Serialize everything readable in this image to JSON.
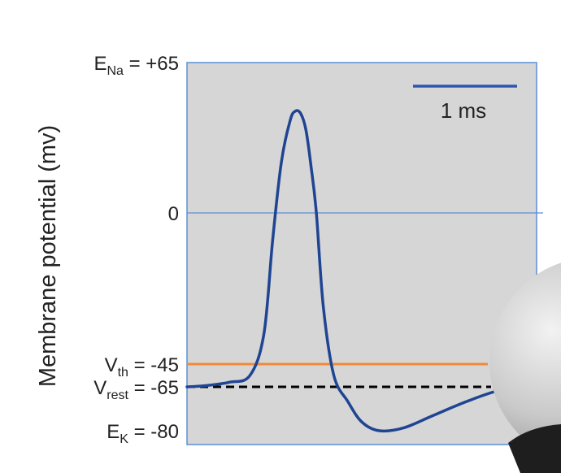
{
  "chart_data": {
    "type": "line",
    "title": "",
    "xlabel": "",
    "ylabel": "Membrane potential (mv)",
    "ylim": [
      -80,
      65
    ],
    "xlim": [
      0,
      1
    ],
    "grid": false,
    "tick_labels": {
      "ena": {
        "main": "E",
        "sub": "Na",
        "rest": " = +65",
        "value": 65
      },
      "zero": {
        "main": "0",
        "value": 0
      },
      "vth": {
        "main": "V",
        "sub": "th",
        "rest": " = -45",
        "value": -45
      },
      "vrest": {
        "main": "V",
        "sub": "rest",
        "rest": " = -65",
        "value": -65
      },
      "ek": {
        "main": "E",
        "sub": "K",
        "rest": " = -80",
        "value": -80
      }
    },
    "reference_lines": [
      {
        "value": 0,
        "style": "solid",
        "color": "#5b8fd6"
      },
      {
        "value": -45,
        "style": "solid",
        "color": "#f08a3a"
      },
      {
        "value": -65,
        "style": "dashed",
        "color": "#000000"
      }
    ],
    "scale_bar": {
      "label": "1 ms",
      "color": "#2e56b0"
    },
    "series": [
      {
        "color": "#1f4592",
        "x": [
          0,
          0.05,
          0.12,
          0.18,
          0.22,
          0.245,
          0.27,
          0.295,
          0.31,
          0.325,
          0.34,
          0.355,
          0.37,
          0.39,
          0.42,
          0.46,
          0.5,
          0.55,
          0.62,
          0.7,
          0.8,
          0.9,
          1.0
        ],
        "y": [
          -65,
          -64,
          -61,
          -55,
          -36,
          -8,
          22,
          40,
          44,
          43,
          36,
          20,
          0,
          -28,
          -55,
          -70,
          -77,
          -80,
          -79,
          -75,
          -70,
          -66,
          -64
        ]
      }
    ],
    "plot_background": "#d6d6d6",
    "axis_color": "#5b8fd6"
  }
}
